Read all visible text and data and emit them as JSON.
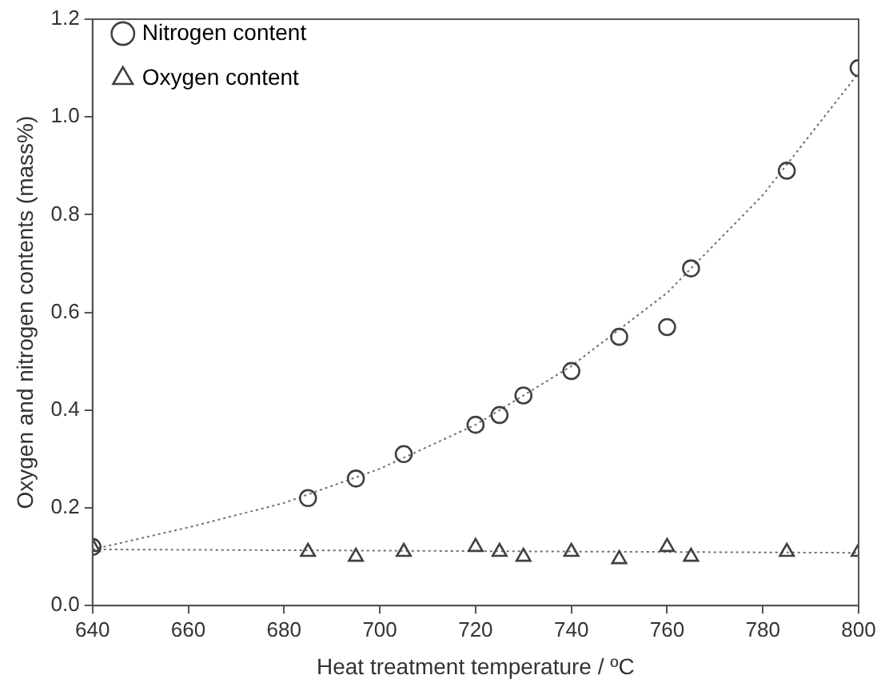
{
  "chart_data": {
    "type": "scatter",
    "xlabel": "Heat treatment temperature / ºC",
    "ylabel": "Oxygen and nitrogen contents (mass%)",
    "xlim": [
      640,
      800
    ],
    "xticks": [
      640,
      660,
      680,
      700,
      720,
      740,
      760,
      780,
      800
    ],
    "ylim": [
      0,
      1.2
    ],
    "yticks": [
      {
        "value": 0,
        "label": "0.0"
      },
      0.2,
      0.4,
      0.6,
      0.8,
      {
        "value": 1,
        "label": "1.0"
      },
      1.2
    ],
    "grid": false,
    "legend": "top left",
    "series": [
      {
        "name": "Nitrogen content",
        "color": "#404040",
        "marker": "circle",
        "x": [
          640,
          685,
          695,
          705,
          720,
          725,
          730,
          740,
          750,
          760,
          765,
          785,
          800
        ],
        "values": [
          0.12,
          0.22,
          0.26,
          0.31,
          0.37,
          0.39,
          0.43,
          0.48,
          0.55,
          0.57,
          0.69,
          0.89,
          1.1
        ]
      },
      {
        "name": "Oxygen content",
        "color": "#404040",
        "marker": "triangle",
        "x": [
          640,
          685,
          695,
          705,
          720,
          725,
          730,
          740,
          750,
          760,
          765,
          785,
          800
        ],
        "values": [
          0.12,
          0.11,
          0.1,
          0.11,
          0.12,
          0.11,
          0.1,
          0.11,
          0.095,
          0.12,
          0.1,
          0.11,
          0.11
        ]
      },
      {
        "type": "line",
        "color": "#707070",
        "marker": "none",
        "line_style": "dotted",
        "x": [
          640,
          660,
          680,
          700,
          720,
          740,
          760,
          780,
          800
        ],
        "values": [
          0.115,
          0.16,
          0.21,
          0.28,
          0.37,
          0.49,
          0.64,
          0.84,
          1.09
        ]
      },
      {
        "type": "line",
        "color": "#707070",
        "marker": "none",
        "line_style": "dotted",
        "x": [
          640,
          800
        ],
        "values": [
          0.115,
          0.108
        ]
      }
    ]
  }
}
